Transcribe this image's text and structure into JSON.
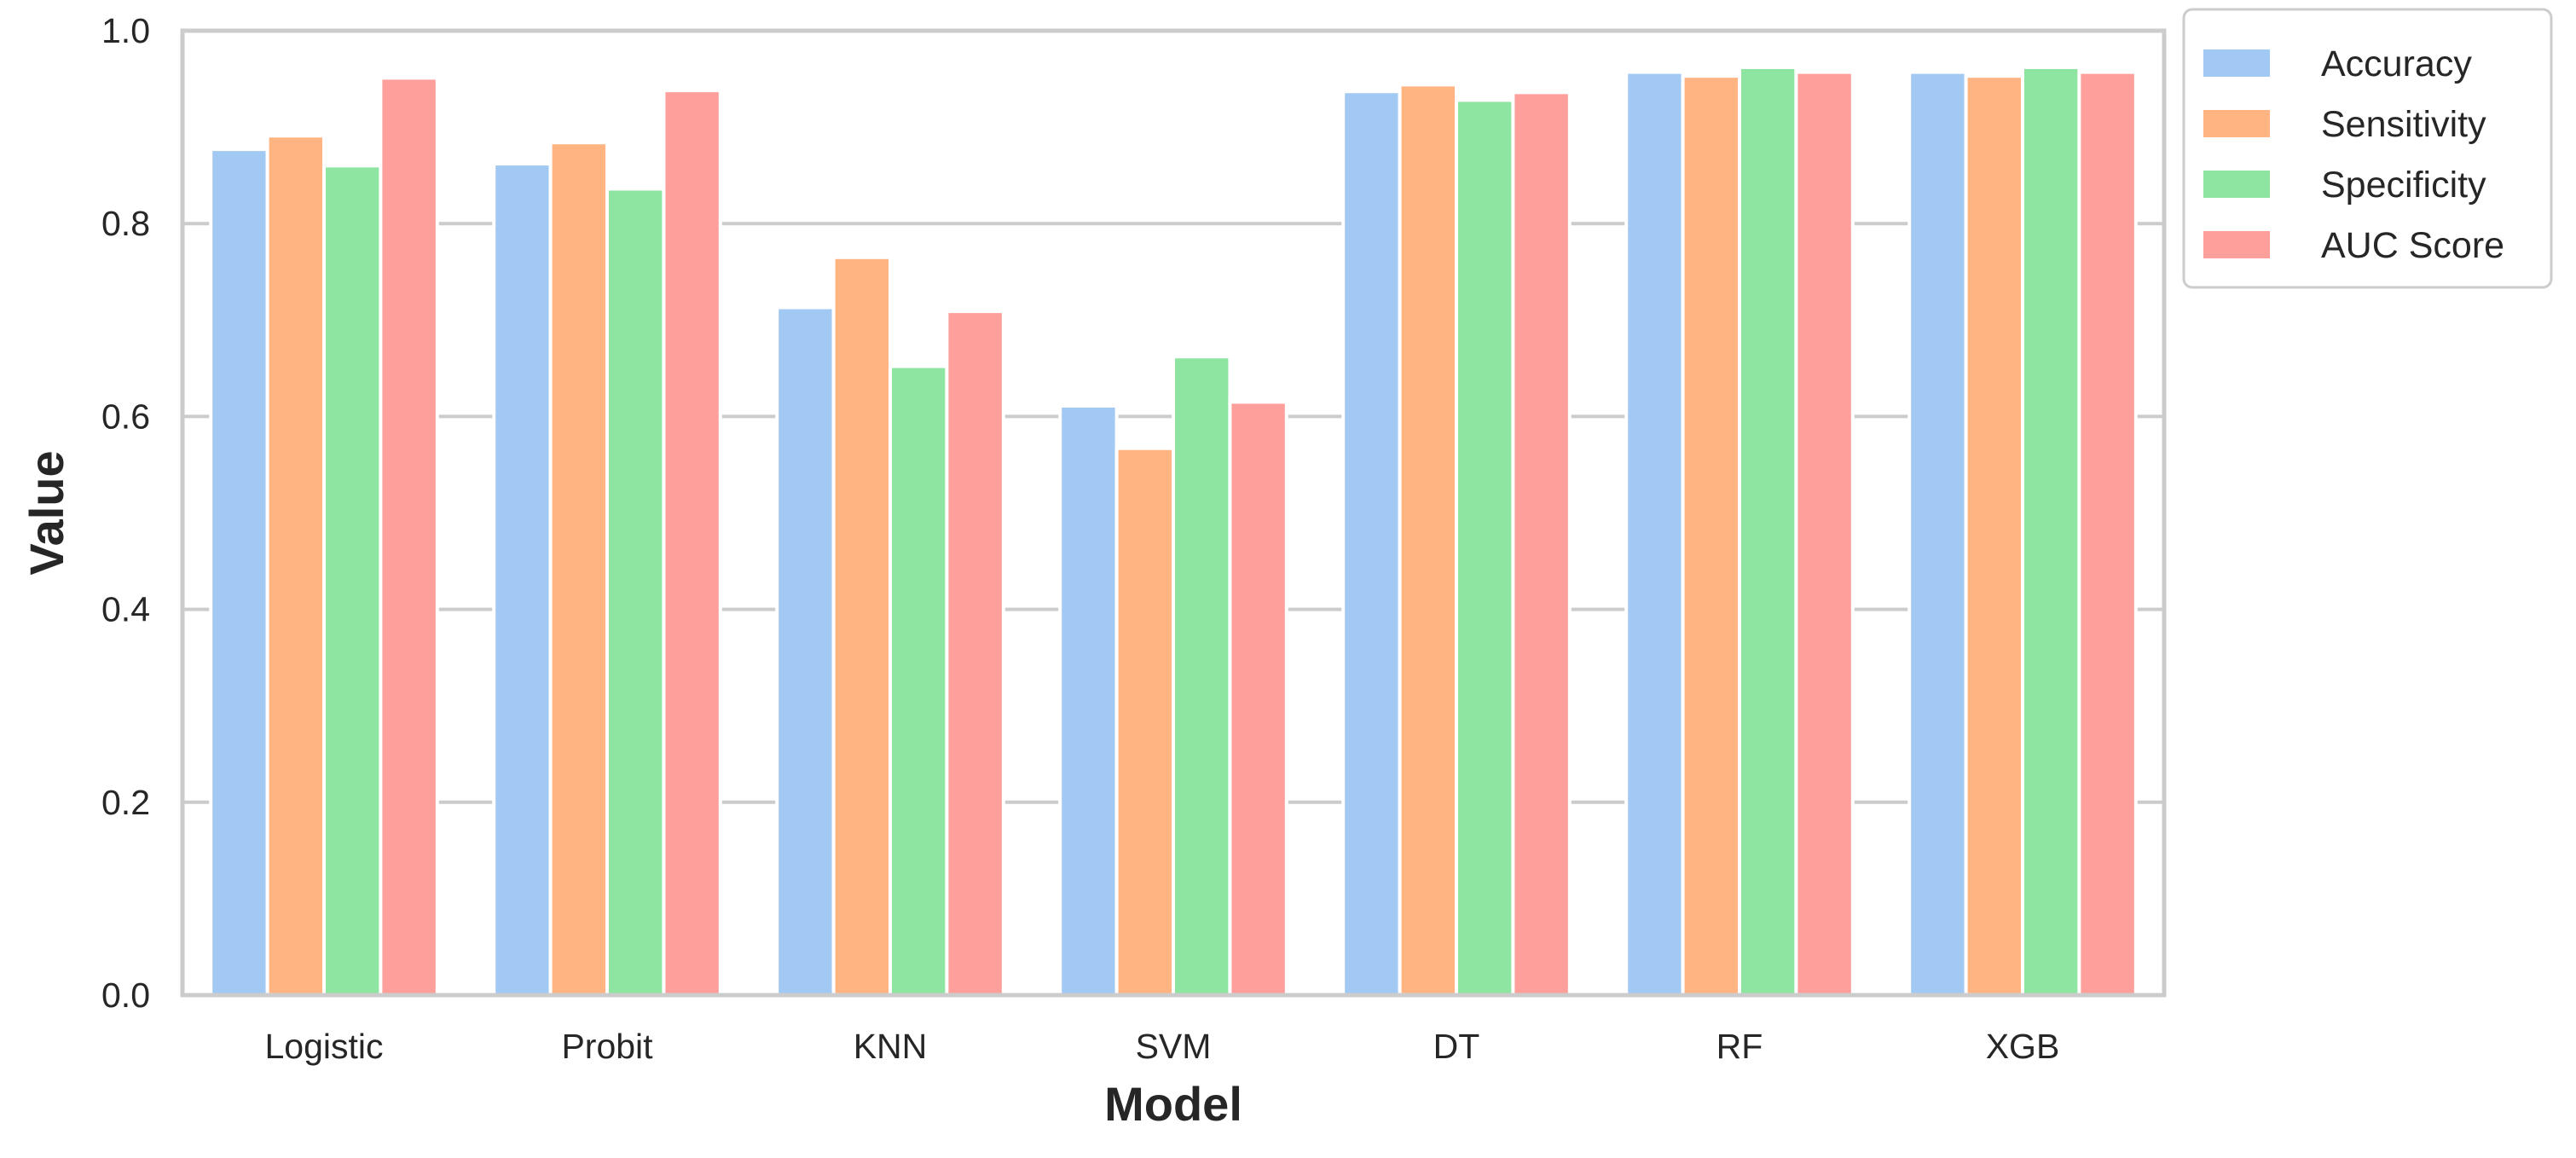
{
  "chart_data": {
    "type": "bar",
    "xlabel": "Model",
    "ylabel": "Value",
    "ylim": [
      0,
      1.0
    ],
    "yticks": [
      "0.0",
      "0.2",
      "0.4",
      "0.6",
      "0.8",
      "1.0"
    ],
    "grid": "horizontal",
    "legend_position": "outside top-right",
    "categories": [
      "Logistic",
      "Probit",
      "KNN",
      "SVM",
      "DT",
      "RF",
      "XGB"
    ],
    "series": [
      {
        "name": "Accuracy",
        "color": "#a1c9f4",
        "values": [
          0.877,
          0.862,
          0.713,
          0.611,
          0.937,
          0.957,
          0.957
        ]
      },
      {
        "name": "Sensitivity",
        "color": "#ffb482",
        "values": [
          0.891,
          0.884,
          0.765,
          0.567,
          0.944,
          0.953,
          0.953
        ]
      },
      {
        "name": "Specificity",
        "color": "#8de5a1",
        "values": [
          0.86,
          0.836,
          0.652,
          0.662,
          0.928,
          0.962,
          0.962
        ]
      },
      {
        "name": "AUC Score",
        "color": "#ff9f9b",
        "values": [
          0.951,
          0.938,
          0.709,
          0.615,
          0.936,
          0.957,
          0.957
        ]
      }
    ]
  }
}
